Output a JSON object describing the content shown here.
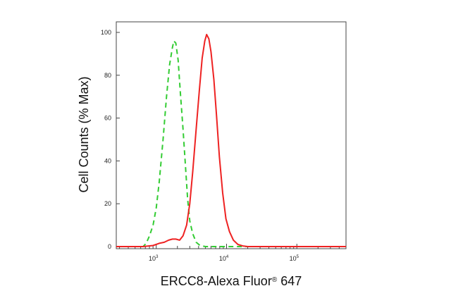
{
  "chart_data": {
    "type": "line",
    "title": "",
    "xlabel": "ERCC8-Alexa Fluor",
    "xlabel_mark": "®",
    "xlabel_suffix": " 647",
    "ylabel": "Cell Counts (% Max)",
    "xscale": "log",
    "xlim": [
      270,
      500000
    ],
    "ylim": [
      0,
      100
    ],
    "yticks": [
      0,
      20,
      40,
      60,
      80,
      100
    ],
    "xticks": [
      {
        "value": 1000,
        "base": "10",
        "exp": "3"
      },
      {
        "value": 10000,
        "base": "10",
        "exp": "4"
      },
      {
        "value": 100000,
        "base": "10",
        "exp": "5"
      }
    ],
    "legend": "none",
    "grid": false,
    "series": [
      {
        "style": "dashed",
        "color": "#33cc33",
        "points": [
          [
            270,
            0
          ],
          [
            550,
            0
          ],
          [
            650,
            0
          ],
          [
            720,
            1.5
          ],
          [
            800,
            5
          ],
          [
            900,
            10
          ],
          [
            1000,
            18
          ],
          [
            1100,
            30
          ],
          [
            1250,
            50
          ],
          [
            1400,
            70
          ],
          [
            1550,
            85
          ],
          [
            1700,
            93
          ],
          [
            1780,
            96
          ],
          [
            1900,
            95
          ],
          [
            2050,
            87
          ],
          [
            2200,
            72
          ],
          [
            2400,
            55
          ],
          [
            2600,
            38
          ],
          [
            2800,
            22
          ],
          [
            3000,
            12
          ],
          [
            3300,
            6
          ],
          [
            3700,
            2
          ],
          [
            4200,
            0.5
          ],
          [
            5000,
            0
          ],
          [
            500000,
            0
          ]
        ]
      },
      {
        "style": "solid",
        "color": "#ee2222",
        "points": [
          [
            270,
            0
          ],
          [
            650,
            0
          ],
          [
            900,
            0.5
          ],
          [
            1100,
            1.5
          ],
          [
            1300,
            2
          ],
          [
            1500,
            3
          ],
          [
            1700,
            3.5
          ],
          [
            1900,
            3.5
          ],
          [
            2150,
            3
          ],
          [
            2400,
            5
          ],
          [
            2700,
            10
          ],
          [
            3000,
            20
          ],
          [
            3300,
            35
          ],
          [
            3700,
            55
          ],
          [
            4100,
            73
          ],
          [
            4500,
            88
          ],
          [
            4900,
            96
          ],
          [
            5200,
            99
          ],
          [
            5600,
            97
          ],
          [
            6000,
            91
          ],
          [
            6600,
            78
          ],
          [
            7200,
            61
          ],
          [
            7900,
            42
          ],
          [
            8800,
            25
          ],
          [
            9800,
            13
          ],
          [
            11000,
            7
          ],
          [
            12500,
            3
          ],
          [
            14500,
            1
          ],
          [
            17000,
            0.3
          ],
          [
            20000,
            0
          ],
          [
            500000,
            0
          ]
        ]
      }
    ]
  }
}
